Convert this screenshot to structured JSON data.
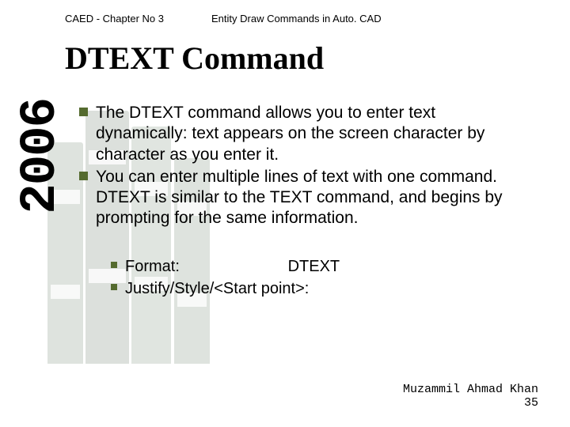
{
  "header": {
    "left": "CAED - Chapter No 3",
    "right": "Entity Draw Commands in Auto. CAD"
  },
  "title": "DTEXT Command",
  "year": "2006",
  "bullets": [
    "The DTEXT command allows you to enter text dynamically: text appears on the screen character by character as you enter it.",
    "You can enter multiple lines of text with one command. DTEXT is similar to the TEXT command, and begins by prompting for the same information."
  ],
  "sub": {
    "format_label": "Format:",
    "format_value": "DTEXT",
    "justify": "Justify/Style/<Start point>:"
  },
  "footer": {
    "author": "Muzammil Ahmad Khan",
    "page": "35"
  },
  "colors": {
    "bullet": "#556b2f",
    "text": "#000000",
    "background": "#ffffff"
  }
}
